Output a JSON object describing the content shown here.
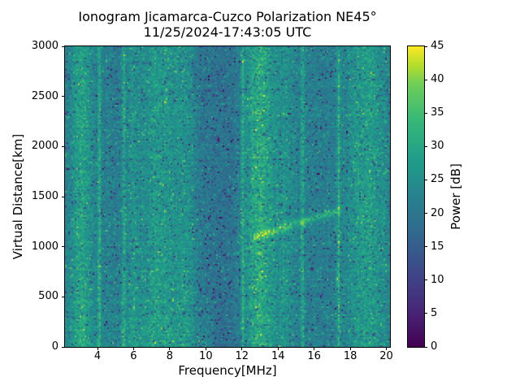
{
  "figure": {
    "title": "Ionogram Jicamarca-Cuzco Polarization NE45°",
    "subtitle": "11/25/2024-17:43:05 UTC"
  },
  "axes": {
    "xlabel": "Frequency[MHz]",
    "ylabel": "Virtual Distance[km]",
    "x_ticks": [
      4,
      6,
      8,
      10,
      12,
      14,
      16,
      18,
      20
    ],
    "y_ticks": [
      0,
      500,
      1000,
      1500,
      2000,
      2500,
      3000
    ]
  },
  "colorbar": {
    "label": "Power [dB]",
    "ticks": [
      0,
      5,
      10,
      15,
      20,
      25,
      30,
      35,
      40,
      45
    ],
    "min_db": 0,
    "max_db": 45,
    "colormap": "viridis"
  },
  "colors": {
    "background": "#ffffff",
    "axes_line": "#000000",
    "text": "#000000",
    "viridis_stops": [
      [
        0.0,
        "#440154"
      ],
      [
        0.125,
        "#482878"
      ],
      [
        0.25,
        "#3e4989"
      ],
      [
        0.375,
        "#31688e"
      ],
      [
        0.5,
        "#26828e"
      ],
      [
        0.625,
        "#1f9e89"
      ],
      [
        0.75,
        "#35b779"
      ],
      [
        0.875,
        "#6ece58"
      ],
      [
        0.9375,
        "#b5de2b"
      ],
      [
        1.0,
        "#fde725"
      ]
    ]
  },
  "chart_data": {
    "type": "heatmap",
    "title": "Ionogram Jicamarca-Cuzco Polarization NE45°",
    "subtitle": "11/25/2024-17:43:05 UTC",
    "xlabel": "Frequency[MHz]",
    "ylabel": "Virtual Distance[km]",
    "xlim": [
      2.2,
      20.2
    ],
    "ylim": [
      0,
      3000
    ],
    "clim_db": [
      0,
      45
    ],
    "colormap": "viridis",
    "grid": false,
    "background_power_db": 21.5,
    "noise_std_db": 4.2,
    "dark_speckle_probability": 0.05,
    "row_striping_db": 1.6,
    "low_altitude_boost": {
      "max_freq_mhz": 10.5,
      "boost_db": 3.0,
      "scale_km": 450
    },
    "rfi_bands": [
      {
        "center_mhz": 3.1,
        "width_mhz": 0.4,
        "boost_db": 7.0,
        "kind": "broad"
      },
      {
        "center_mhz": 4.1,
        "width_mhz": 0.06,
        "boost_db": 8.5,
        "kind": "thin-line"
      },
      {
        "center_mhz": 5.45,
        "width_mhz": 0.07,
        "boost_db": 7.5,
        "kind": "thin-line"
      },
      {
        "center_mhz": 5.9,
        "width_mhz": 0.18,
        "boost_db": 3.0,
        "kind": "broad"
      },
      {
        "center_mhz": 7.4,
        "width_mhz": 0.85,
        "boost_db": 5.5,
        "kind": "broad"
      },
      {
        "center_mhz": 8.9,
        "width_mhz": 0.35,
        "boost_db": 3.5,
        "kind": "broad"
      },
      {
        "center_mhz": 10.7,
        "width_mhz": 0.85,
        "boost_db": -2.5,
        "kind": "dim"
      },
      {
        "center_mhz": 12.05,
        "width_mhz": 0.06,
        "boost_db": 7.0,
        "kind": "thin-line"
      },
      {
        "center_mhz": 13.0,
        "width_mhz": 0.58,
        "boost_db": 9.5,
        "kind": "broad-bright"
      },
      {
        "center_mhz": 14.4,
        "width_mhz": 0.33,
        "boost_db": 4.0,
        "kind": "broad"
      },
      {
        "center_mhz": 15.35,
        "width_mhz": 0.06,
        "boost_db": 8.5,
        "kind": "thin-line"
      },
      {
        "center_mhz": 17.35,
        "width_mhz": 0.06,
        "boost_db": 9.0,
        "kind": "thin-line"
      },
      {
        "center_mhz": 18.9,
        "width_mhz": 0.8,
        "boost_db": 6.0,
        "kind": "broad"
      }
    ],
    "echo_trace": {
      "freq_start_mhz": 12.6,
      "freq_end_mhz": 17.5,
      "distance_start_km": 1090,
      "distance_end_km": 1370,
      "boost_db": 11,
      "vertical_width_km": 28
    }
  }
}
